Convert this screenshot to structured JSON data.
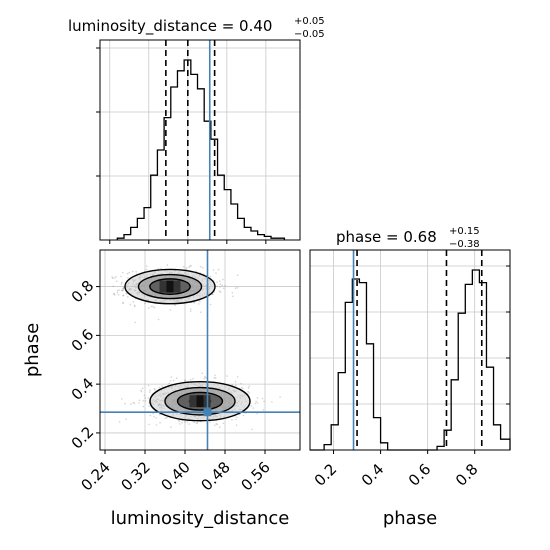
{
  "chart_data": {
    "type": "corner",
    "parameters": [
      "luminosity_distance",
      "phase"
    ],
    "truths": {
      "luminosity_distance": 0.445,
      "phase": 0.285
    },
    "panels": [
      {
        "id": "hist-luminosity-distance",
        "type": "histogram",
        "parameter": "luminosity_distance",
        "title": {
          "main": "luminosity_distance = 0.40",
          "sup": "+0.05",
          "sub": "−0.05"
        },
        "xlim": [
          0.22,
          0.63
        ],
        "bins": [
          0.2555,
          0.2692,
          0.2829,
          0.2966,
          0.3103,
          0.324,
          0.3377,
          0.3514,
          0.3651,
          0.3788,
          0.3925,
          0.4062,
          0.4199,
          0.4336,
          0.4473,
          0.461,
          0.4747,
          0.4884,
          0.5021,
          0.5158,
          0.5295,
          0.5432,
          0.5569,
          0.5706,
          0.5843,
          0.598
        ],
        "density": [
          0.01,
          0.03,
          0.07,
          0.12,
          0.18,
          0.36,
          0.5,
          0.68,
          0.85,
          0.94,
          1.0,
          0.92,
          0.84,
          0.66,
          0.56,
          0.36,
          0.28,
          0.2,
          0.12,
          0.07,
          0.05,
          0.03,
          0.02,
          0.01,
          0.01
        ],
        "quantiles": [
          0.355,
          0.4,
          0.455
        ]
      },
      {
        "id": "hist-phase",
        "type": "histogram",
        "parameter": "phase",
        "title": {
          "main": "phase = 0.68",
          "sup": "+0.15",
          "sub": "−0.38"
        },
        "xlim": [
          0.1,
          0.95
        ],
        "xticks": [
          0.2,
          0.4,
          0.6,
          0.8
        ],
        "xlabel": "phase",
        "bins": [
          0.1,
          0.13,
          0.16,
          0.19,
          0.22,
          0.25,
          0.28,
          0.31,
          0.34,
          0.37,
          0.4,
          0.43,
          0.46,
          0.49,
          0.52,
          0.55,
          0.58,
          0.61,
          0.64,
          0.67,
          0.7,
          0.73,
          0.76,
          0.79,
          0.82,
          0.85,
          0.88,
          0.91,
          0.95
        ],
        "density": [
          0.0,
          0.0,
          0.03,
          0.14,
          0.43,
          0.82,
          0.95,
          0.93,
          0.59,
          0.18,
          0.04,
          0.0,
          0.0,
          0.0,
          0.0,
          0.0,
          0.0,
          0.0,
          0.02,
          0.11,
          0.39,
          0.76,
          0.92,
          1.0,
          0.93,
          0.46,
          0.14,
          0.06
        ],
        "quantiles": [
          0.3,
          0.68,
          0.83
        ]
      },
      {
        "id": "hist2d-phase-vs-luminosity-distance",
        "type": "hist2d",
        "x_parameter": "luminosity_distance",
        "y_parameter": "phase",
        "xlim": [
          0.23,
          0.63
        ],
        "ylim": [
          0.13,
          0.95
        ],
        "xticks": [
          "0.24",
          "0.32",
          "0.40",
          "0.48",
          "0.56"
        ],
        "yticks": [
          "0.2",
          "0.4",
          "0.6",
          "0.8"
        ],
        "xlabel": "luminosity_distance",
        "ylabel": "phase",
        "modes": [
          {
            "x": 0.37,
            "y": 0.8,
            "sx": 0.045,
            "sy": 0.035
          },
          {
            "x": 0.43,
            "y": 0.33,
            "sx": 0.05,
            "sy": 0.04
          }
        ],
        "truth_point": {
          "x": 0.445,
          "y": 0.285
        }
      }
    ],
    "grid": true,
    "colors": {
      "hist": "#000000",
      "truth": "#4682b4",
      "quantile": "#000000",
      "points": "#808080",
      "grid": "#c8c8c8"
    }
  }
}
